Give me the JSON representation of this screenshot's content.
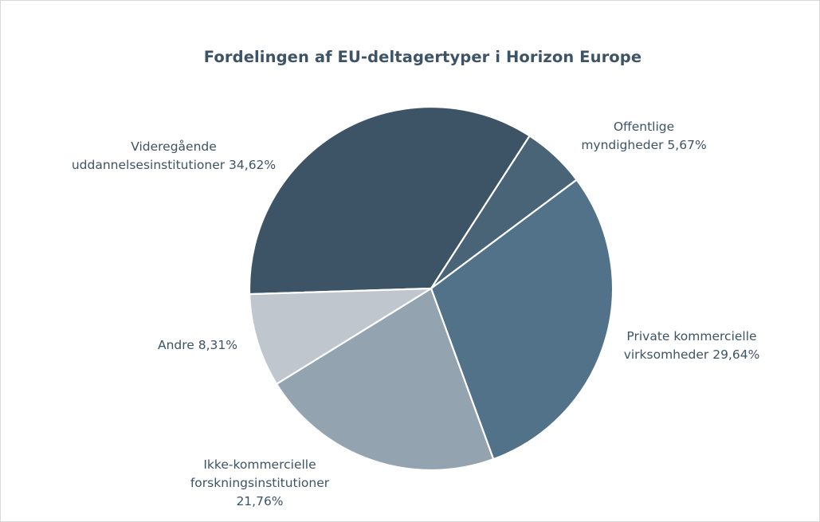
{
  "chart_data": {
    "type": "pie",
    "title": "Fordelingen af EU-deltagertyper i Horizon Europe",
    "categories": [
      "Videregående uddannelsesinstitutioner",
      "Offentlige myndigheder",
      "Private kommercielle virksomheder",
      "Ikke-kommercielle forskningsinstitutioner",
      "Andre"
    ],
    "values": [
      34.62,
      5.67,
      29.64,
      21.76,
      8.31
    ],
    "unit": "%",
    "colors": [
      "#3d5467",
      "#4a6477",
      "#527289",
      "#94a3b0",
      "#c0c6ce"
    ],
    "legend": "none (data labels outside slices)"
  },
  "labels": {
    "videregaaende": {
      "line1": "Videregående",
      "line2": "uddannelsesinstitutioner 34,62%"
    },
    "offentlige": {
      "line1": "Offentlige",
      "line2": "myndigheder 5,67%"
    },
    "private": {
      "line1": "Private kommercielle",
      "line2": "virksomheder 29,64%"
    },
    "ikke": {
      "line1": "Ikke-kommercielle",
      "line2": "forskningsinstitutioner",
      "line3": "21,76%"
    },
    "andre": {
      "line1": "Andre 8,31%"
    }
  }
}
